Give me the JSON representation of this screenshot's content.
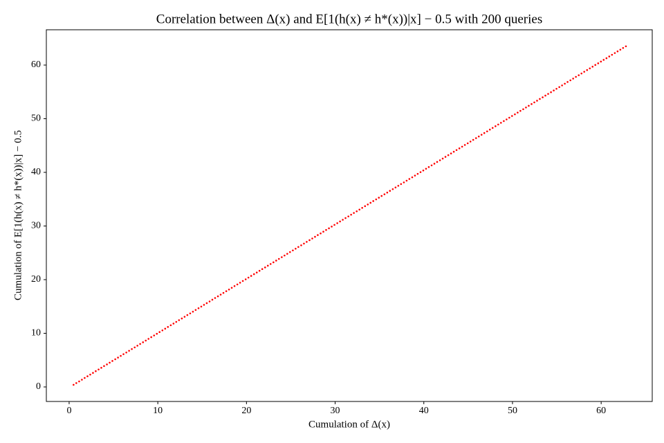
{
  "chart_data": {
    "type": "scatter",
    "title": "Correlation between Δ(x) and E[1(h(x) ≠ h*(x))|x] − 0.5 with 200 queries",
    "x_label": "Cumulation of Δ(x)",
    "y_label": "Cumulation of E[1(h(x) ≠ h*(x))|x] − 0.5",
    "color": "#ff0000",
    "xlim": [
      -2.57,
      65.76
    ],
    "ylim": [
      -2.71,
      66.58
    ],
    "xticks": [
      0,
      10,
      20,
      30,
      40,
      50,
      60
    ],
    "yticks": [
      0,
      10,
      20,
      30,
      40,
      50,
      60
    ],
    "grid": false,
    "x": [
      0.5,
      0.81,
      1.13,
      1.44,
      1.75,
      2.07,
      2.38,
      2.69,
      3.0,
      3.32,
      3.63,
      3.94,
      4.26,
      4.57,
      4.88,
      5.2,
      5.51,
      5.82,
      6.13,
      6.45,
      6.76,
      7.07,
      7.39,
      7.7,
      8.01,
      8.33,
      8.64,
      8.95,
      9.26,
      9.58,
      9.89,
      10.2,
      10.52,
      10.83,
      11.14,
      11.46,
      11.77,
      12.08,
      12.39,
      12.71,
      13.02,
      13.33,
      13.65,
      13.96,
      14.27,
      14.59,
      14.9,
      15.21,
      15.52,
      15.84,
      16.15,
      16.46,
      16.78,
      17.09,
      17.4,
      17.72,
      18.03,
      18.34,
      18.65,
      18.97,
      19.28,
      19.59,
      19.91,
      20.22,
      20.53,
      20.85,
      21.16,
      21.47,
      21.78,
      22.1,
      22.41,
      22.72,
      23.04,
      23.35,
      23.66,
      23.98,
      24.29,
      24.6,
      24.91,
      25.23,
      25.54,
      25.85,
      26.17,
      26.48,
      26.79,
      27.11,
      27.42,
      27.73,
      28.04,
      28.36,
      28.67,
      28.98,
      29.3,
      29.61,
      29.92,
      30.24,
      30.55,
      30.86,
      31.17,
      31.49,
      31.8,
      32.11,
      32.43,
      32.74,
      33.05,
      33.37,
      33.68,
      33.99,
      34.3,
      34.62,
      34.93,
      35.24,
      35.56,
      35.87,
      36.18,
      36.5,
      36.81,
      37.12,
      37.43,
      37.75,
      38.06,
      38.37,
      38.69,
      39.0,
      39.31,
      39.63,
      39.94,
      40.25,
      40.56,
      40.88,
      41.19,
      41.5,
      41.82,
      42.13,
      42.44,
      42.76,
      43.07,
      43.38,
      43.69,
      44.01,
      44.32,
      44.63,
      44.95,
      45.26,
      45.57,
      45.89,
      46.2,
      46.51,
      46.82,
      47.14,
      47.45,
      47.76,
      48.08,
      48.39,
      48.7,
      49.02,
      49.33,
      49.64,
      49.95,
      50.27,
      50.58,
      50.89,
      51.21,
      51.52,
      51.83,
      52.15,
      52.46,
      52.77,
      53.08,
      53.4,
      53.71,
      54.02,
      54.34,
      54.65,
      54.96,
      55.28,
      55.59,
      55.9,
      56.21,
      56.53,
      56.84,
      57.15,
      57.47,
      57.78,
      58.09,
      58.41,
      58.72,
      59.03,
      59.34,
      59.66,
      59.97,
      60.28,
      60.6,
      60.91,
      61.22,
      61.54,
      61.85,
      62.16,
      62.47,
      62.79
    ],
    "values": [
      0.4,
      0.72,
      1.03,
      1.35,
      1.67,
      1.99,
      2.3,
      2.62,
      2.94,
      3.25,
      3.57,
      3.89,
      4.2,
      4.52,
      4.84,
      5.16,
      5.47,
      5.79,
      6.11,
      6.42,
      6.74,
      7.06,
      7.37,
      7.69,
      8.01,
      8.33,
      8.64,
      8.96,
      9.28,
      9.59,
      9.91,
      10.23,
      10.54,
      10.86,
      11.18,
      11.5,
      11.81,
      12.13,
      12.45,
      12.76,
      13.08,
      13.4,
      13.71,
      14.03,
      14.35,
      14.67,
      14.98,
      15.3,
      15.62,
      15.93,
      16.26,
      16.58,
      16.89,
      17.21,
      17.53,
      17.85,
      18.16,
      18.48,
      18.8,
      19.11,
      19.43,
      19.75,
      20.06,
      20.38,
      20.7,
      21.02,
      21.33,
      21.65,
      21.97,
      22.28,
      22.6,
      22.92,
      23.23,
      23.55,
      23.87,
      24.19,
      24.5,
      24.82,
      25.14,
      25.45,
      25.77,
      26.09,
      26.4,
      26.72,
      27.04,
      27.36,
      27.67,
      27.99,
      28.31,
      28.62,
      28.94,
      29.26,
      29.57,
      29.89,
      30.21,
      30.53,
      30.84,
      31.16,
      31.48,
      31.79,
      32.11,
      32.43,
      32.74,
      33.06,
      33.38,
      33.7,
      34.01,
      34.33,
      34.65,
      34.96,
      35.28,
      35.6,
      35.91,
      36.23,
      36.55,
      36.87,
      37.18,
      37.5,
      37.82,
      38.13,
      38.45,
      38.77,
      39.08,
      39.4,
      39.72,
      40.04,
      40.35,
      40.67,
      40.99,
      41.3,
      41.62,
      41.94,
      42.25,
      42.57,
      42.89,
      43.21,
      43.52,
      43.84,
      44.16,
      44.47,
      44.79,
      45.11,
      45.42,
      45.74,
      46.06,
      46.38,
      46.69,
      47.01,
      47.33,
      47.64,
      47.97,
      48.29,
      48.6,
      48.92,
      49.24,
      49.56,
      49.87,
      50.19,
      50.51,
      50.82,
      51.14,
      51.46,
      51.77,
      52.09,
      52.41,
      52.73,
      53.04,
      53.36,
      53.68,
      53.99,
      54.31,
      54.63,
      54.94,
      55.26,
      55.58,
      55.9,
      56.21,
      56.53,
      56.85,
      57.16,
      57.48,
      57.8,
      58.11,
      58.43,
      58.75,
      59.07,
      59.38,
      59.7,
      60.02,
      60.33,
      60.65,
      60.97,
      61.28,
      61.6,
      61.92,
      62.24,
      62.55,
      62.87,
      63.19,
      63.5
    ]
  }
}
